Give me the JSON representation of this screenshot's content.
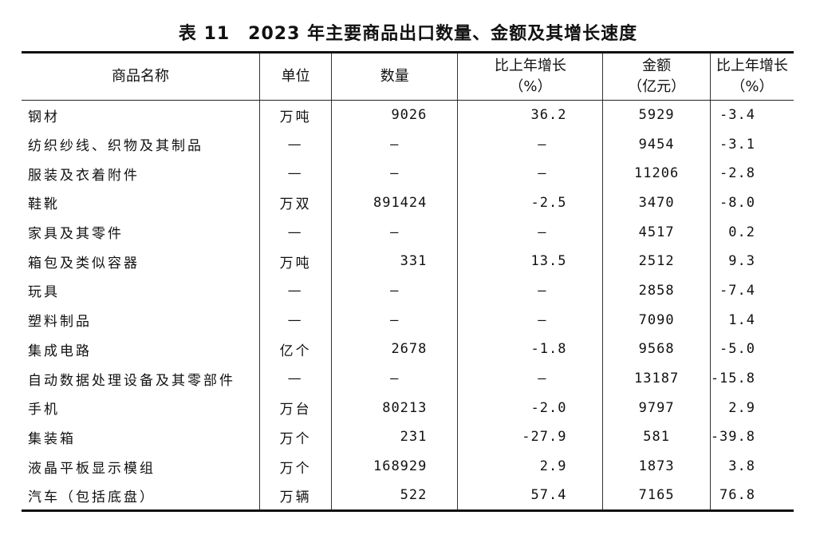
{
  "title": "表 11　2023 年主要商品出口数量、金额及其增长速度",
  "headers": [
    "商品名称",
    "单位",
    "数量",
    "比上年增长\n（%）",
    "金额\n（亿元）",
    "比上年增长\n（%）"
  ],
  "rows": [
    [
      "钢材",
      "万吨",
      "9026",
      "36.2",
      "5929",
      "-3.4"
    ],
    [
      "纺织纱线、织物及其制品",
      "—",
      "—",
      "—",
      "9454",
      "-3.1"
    ],
    [
      "服装及衣着附件",
      "—",
      "—",
      "—",
      "11206",
      "-2.8"
    ],
    [
      "鞋靴",
      "万双",
      "891424",
      "-2.5",
      "3470",
      "-8.0"
    ],
    [
      "家具及其零件",
      "—",
      "—",
      "—",
      "4517",
      "0.2"
    ],
    [
      "箱包及类似容器",
      "万吨",
      "331",
      "13.5",
      "2512",
      "9.3"
    ],
    [
      "玩具",
      "—",
      "—",
      "—",
      "2858",
      "-7.4"
    ],
    [
      "塑料制品",
      "—",
      "—",
      "—",
      "7090",
      "1.4"
    ],
    [
      "集成电路",
      "亿个",
      "2678",
      "-1.8",
      "9568",
      "-5.0"
    ],
    [
      "自动数据处理设备及其零部件",
      "—",
      "—",
      "—",
      "13187",
      "-15.8"
    ],
    [
      "手机",
      "万台",
      "80213",
      "-2.0",
      "9797",
      "2.9"
    ],
    [
      "集装箱",
      "万个",
      "231",
      "-27.9",
      "581",
      "-39.8"
    ],
    [
      "液晶平板显示模组",
      "万个",
      "168929",
      "2.9",
      "1873",
      "3.8"
    ],
    [
      "汽车（包括底盘）",
      "万辆",
      "522",
      "57.4",
      "7165",
      "76.8"
    ]
  ]
}
